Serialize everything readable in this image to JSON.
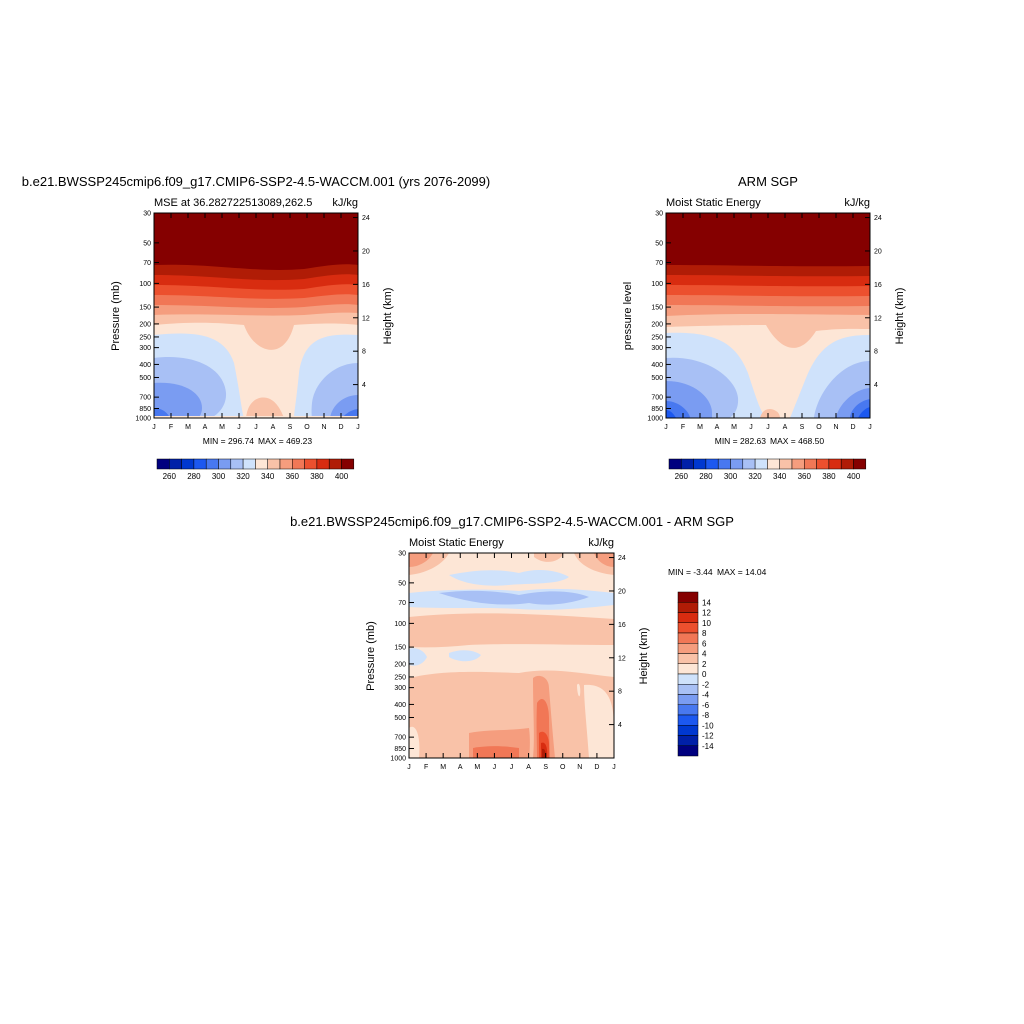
{
  "figure": {
    "palette": [
      "#00007f",
      "#0020a8",
      "#0038d0",
      "#1c58f0",
      "#4878f0",
      "#7a9cf2",
      "#a8c0f5",
      "#cfe2fb",
      "#fde6d6",
      "#f9c2a8",
      "#f59d7e",
      "#f17756",
      "#ec502e",
      "#d82c10",
      "#b01c06",
      "#850000"
    ]
  },
  "chart_data": [
    {
      "type": "contour",
      "id": "model",
      "title": "b.e21.BWSSP245cmip6.f09_g17.CMIP6-SSP2-4.5-WACCM.001 (yrs 2076-2099)",
      "left_subtitle": "MSE at 36.282722513089,262.5",
      "right_subtitle": "kJ/kg",
      "ylabel": "Pressure (mb)",
      "ylabel_right": "Height (km)",
      "x_ticks": [
        "J",
        "F",
        "M",
        "A",
        "M",
        "J",
        "J",
        "A",
        "S",
        "O",
        "N",
        "D",
        "J"
      ],
      "y_ticks": [
        "30",
        "50",
        "70",
        "100",
        "150",
        "200",
        "250",
        "300",
        "400",
        "500",
        "700",
        "850",
        "1000"
      ],
      "y_ticks_right": [
        "24",
        "20",
        "16",
        "12",
        "8",
        "4"
      ],
      "min_label": "MIN = 296.74",
      "max_label": "MAX = 469.23",
      "colorbar": {
        "levels": [
          255,
          260,
          265,
          270,
          275,
          280,
          285,
          290,
          295,
          300,
          305,
          310,
          315,
          320,
          325,
          330,
          335,
          340,
          345,
          350,
          355,
          360,
          365,
          370,
          375,
          380,
          385,
          390,
          395,
          400
        ],
        "labels": [
          "260",
          "280",
          "300",
          "320",
          "340",
          "360",
          "380",
          "400"
        ]
      }
    },
    {
      "type": "contour",
      "id": "obs",
      "title": "ARM SGP",
      "left_subtitle": "Moist Static Energy",
      "right_subtitle": "kJ/kg",
      "ylabel": "pressure level",
      "ylabel_right": "Height (km)",
      "x_ticks": [
        "J",
        "F",
        "M",
        "A",
        "M",
        "J",
        "J",
        "A",
        "S",
        "O",
        "N",
        "D",
        "J"
      ],
      "y_ticks": [
        "30",
        "50",
        "70",
        "100",
        "150",
        "200",
        "250",
        "300",
        "400",
        "500",
        "700",
        "850",
        "1000"
      ],
      "y_ticks_right": [
        "24",
        "20",
        "16",
        "12",
        "8",
        "4"
      ],
      "min_label": "MIN = 282.63",
      "max_label": "MAX = 468.50",
      "colorbar": {
        "labels": [
          "260",
          "280",
          "300",
          "320",
          "340",
          "360",
          "380",
          "400"
        ]
      }
    },
    {
      "type": "contour",
      "id": "diff",
      "title": "b.e21.BWSSP245cmip6.f09_g17.CMIP6-SSP2-4.5-WACCM.001 - ARM SGP",
      "left_subtitle": "Moist Static Energy",
      "right_subtitle": "kJ/kg",
      "ylabel": "Pressure (mb)",
      "ylabel_right": "Height (km)",
      "x_ticks": [
        "J",
        "F",
        "M",
        "A",
        "M",
        "J",
        "J",
        "A",
        "S",
        "O",
        "N",
        "D",
        "J"
      ],
      "y_ticks": [
        "30",
        "50",
        "70",
        "100",
        "150",
        "200",
        "250",
        "300",
        "400",
        "500",
        "700",
        "850",
        "1000"
      ],
      "y_ticks_right": [
        "24",
        "20",
        "16",
        "12",
        "8",
        "4"
      ],
      "min_label": "MIN =  -3.44",
      "max_label": "MAX =  14.04",
      "colorbar": {
        "labels": [
          "14",
          "12",
          "10",
          "8",
          "6",
          "4",
          "2",
          "0",
          "-2",
          "-4",
          "-6",
          "-8",
          "-10",
          "-12",
          "-14"
        ]
      }
    }
  ]
}
